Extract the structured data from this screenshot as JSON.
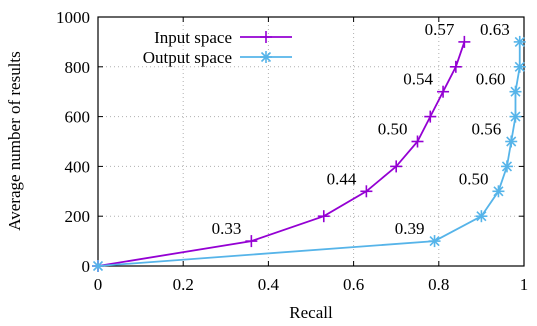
{
  "chart_data": {
    "type": "line",
    "xlabel": "Recall",
    "ylabel": "Average number of results",
    "xlim": [
      0,
      1
    ],
    "ylim": [
      0,
      1000
    ],
    "xticks": [
      0,
      0.2,
      0.4,
      0.6,
      0.8,
      1
    ],
    "xtick_labels": [
      "0",
      "0.2",
      "0.4",
      "0.6",
      "0.8",
      "1"
    ],
    "yticks": [
      0,
      200,
      400,
      600,
      800,
      1000
    ],
    "ytick_labels": [
      "0",
      "200",
      "400",
      "600",
      "800",
      "1000"
    ],
    "grid": true,
    "legend_position": "top-left",
    "series": [
      {
        "name": "Input space",
        "color": "#9400d3",
        "marker": "plus",
        "x": [
          0,
          0.36,
          0.53,
          0.63,
          0.7,
          0.75,
          0.78,
          0.81,
          0.84,
          0.86
        ],
        "y": [
          0,
          100,
          200,
          300,
          400,
          500,
          600,
          700,
          800,
          900
        ]
      },
      {
        "name": "Output space",
        "color": "#56b4e9",
        "marker": "star",
        "x": [
          0,
          0.79,
          0.9,
          0.94,
          0.96,
          0.97,
          0.98,
          0.98,
          0.99,
          0.99
        ],
        "y": [
          0,
          100,
          200,
          300,
          400,
          500,
          600,
          700,
          800,
          900
        ]
      }
    ],
    "annotations": [
      {
        "text": "0.33",
        "series": 0,
        "point": 1
      },
      {
        "text": "0.44",
        "series": 0,
        "point": 3
      },
      {
        "text": "0.50",
        "series": 0,
        "point": 5
      },
      {
        "text": "0.54",
        "series": 0,
        "point": 7
      },
      {
        "text": "0.57",
        "series": 0,
        "point": 9
      },
      {
        "text": "0.39",
        "series": 1,
        "point": 1
      },
      {
        "text": "0.50",
        "series": 1,
        "point": 3
      },
      {
        "text": "0.56",
        "series": 1,
        "point": 5
      },
      {
        "text": "0.60",
        "series": 1,
        "point": 7
      },
      {
        "text": "0.63",
        "series": 1,
        "point": 9
      }
    ]
  }
}
